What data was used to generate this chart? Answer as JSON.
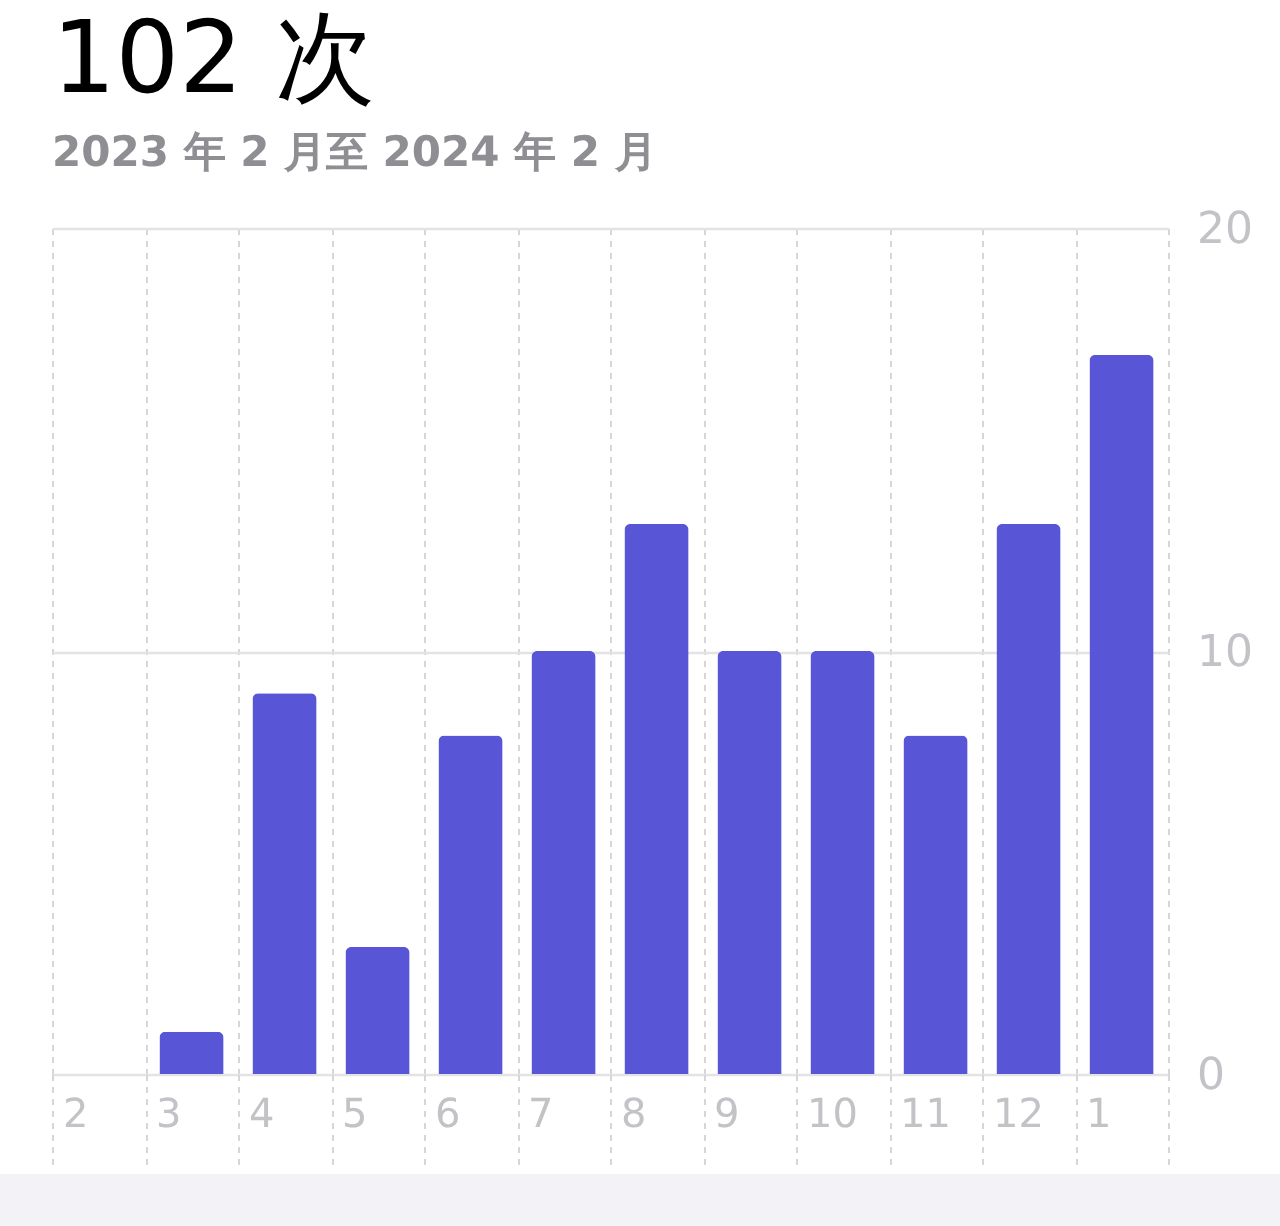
{
  "chart_data": {
    "type": "bar",
    "title": "102 次",
    "subtitle": "2023 年 2 月至 2024 年 2 月",
    "categories": [
      "2",
      "3",
      "4",
      "5",
      "6",
      "7",
      "8",
      "9",
      "10",
      "11",
      "12",
      "1"
    ],
    "values": [
      0,
      1,
      9,
      3,
      8,
      10,
      13,
      10,
      10,
      8,
      13,
      17
    ],
    "color": "#5856d6",
    "ylim": [
      0,
      20
    ],
    "yticks": [
      0,
      10,
      20
    ],
    "grid": true
  }
}
